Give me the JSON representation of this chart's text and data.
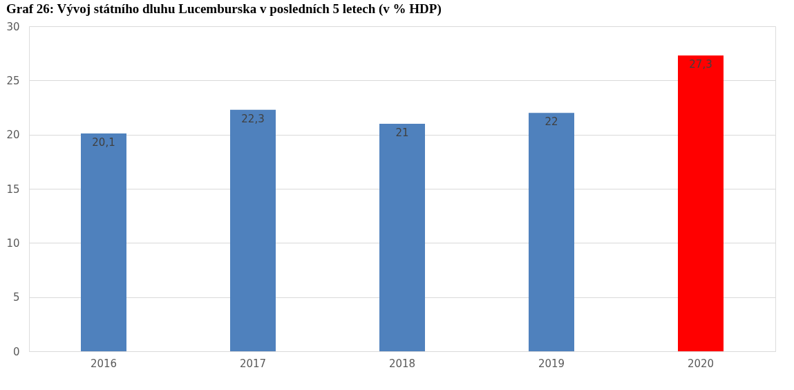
{
  "chart_data": {
    "type": "bar",
    "title": "Graf 26: Vývoj státního dluhu Lucemburska v posledních 5 letech (v % HDP)",
    "categories": [
      "2016",
      "2017",
      "2018",
      "2019",
      "2020"
    ],
    "values": [
      20.1,
      22.3,
      21,
      22,
      27.3
    ],
    "colors": [
      "#4f81bd",
      "#4f81bd",
      "#4f81bd",
      "#4f81bd",
      "#ff0000"
    ],
    "value_labels": [
      "20,1",
      "22,3",
      "21",
      "22",
      "27,3"
    ],
    "ylim": [
      0,
      30
    ],
    "yticks": [
      0,
      5,
      10,
      15,
      20,
      25,
      30
    ],
    "grid": "y"
  }
}
